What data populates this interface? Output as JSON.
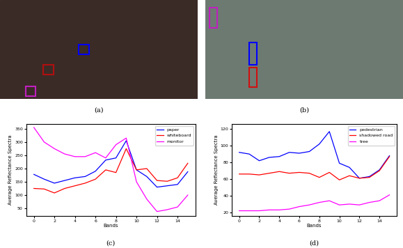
{
  "photos": [
    {
      "caption": "(a)"
    },
    {
      "caption": "(b)"
    }
  ],
  "chart_data": [
    {
      "type": "line",
      "caption": "(c)",
      "xlabel": "Bands",
      "ylabel": "Average Reflectance Spectra",
      "x": [
        0,
        1,
        2,
        3,
        4,
        5,
        6,
        7,
        8,
        9,
        10,
        11,
        12,
        13,
        14,
        15
      ],
      "xlim": [
        -0.75,
        15.75
      ],
      "xticks": [
        0,
        2,
        4,
        6,
        8,
        10,
        12,
        14
      ],
      "ylim": [
        22,
        368
      ],
      "yticks": [
        50,
        100,
        150,
        200,
        250,
        300,
        350
      ],
      "legend": "upper right",
      "series": [
        {
          "name": "paper",
          "color": "blue",
          "values": [
            178,
            160,
            145,
            155,
            165,
            170,
            190,
            232,
            240,
            305,
            195,
            170,
            130,
            135,
            140,
            188
          ]
        },
        {
          "name": "whiteboard",
          "color": "red",
          "values": [
            125,
            123,
            108,
            125,
            135,
            145,
            160,
            195,
            185,
            275,
            195,
            200,
            155,
            152,
            165,
            220
          ]
        },
        {
          "name": "monitor",
          "color": "magenta",
          "values": [
            355,
            300,
            275,
            255,
            245,
            245,
            260,
            240,
            290,
            315,
            150,
            85,
            38,
            45,
            55,
            100
          ]
        }
      ]
    },
    {
      "type": "line",
      "caption": "(d)",
      "xlabel": "Bands",
      "ylabel": "Average Reflectance Spectra",
      "x": [
        0,
        1,
        2,
        3,
        4,
        5,
        6,
        7,
        8,
        9,
        10,
        11,
        12,
        13,
        14,
        15
      ],
      "xlim": [
        -0.75,
        15.75
      ],
      "xticks": [
        0,
        2,
        4,
        6,
        8,
        10,
        12,
        14
      ],
      "ylim": [
        16,
        126
      ],
      "yticks": [
        20,
        40,
        60,
        80,
        100,
        120
      ],
      "legend": "upper right",
      "series": [
        {
          "name": "pedestrian",
          "color": "blue",
          "values": [
            92,
            90,
            82,
            86,
            87,
            92,
            91,
            93,
            102,
            117,
            79,
            74,
            61,
            63,
            71,
            88
          ]
        },
        {
          "name": "shadowed road",
          "color": "red",
          "values": [
            66,
            66,
            65,
            67,
            69,
            67,
            68,
            67,
            62,
            68,
            59,
            64,
            61,
            62,
            70,
            87
          ]
        },
        {
          "name": "tree",
          "color": "magenta",
          "values": [
            22,
            22,
            22,
            23,
            23,
            24,
            27,
            29,
            32,
            34,
            29,
            30,
            29,
            32,
            34,
            41
          ]
        }
      ]
    }
  ]
}
